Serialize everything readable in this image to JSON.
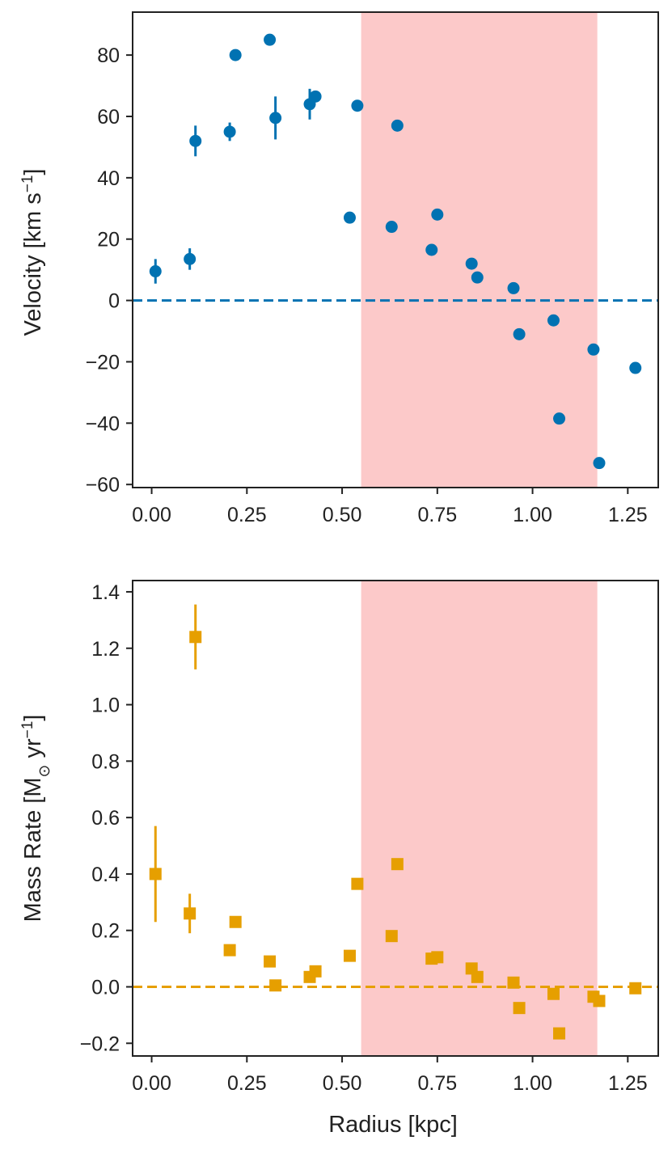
{
  "chart_data": [
    {
      "type": "scatter",
      "panel": "top",
      "ylabel": "Velocity [km s−1]",
      "ylabel_parts": {
        "main": "Velocity [km s",
        "sup": "−1",
        "close": "]"
      },
      "xlabel": "",
      "xlim": [
        -0.05,
        1.33
      ],
      "ylim": [
        -61,
        94
      ],
      "xticks": [
        0.0,
        0.25,
        0.5,
        0.75,
        1.0,
        1.25
      ],
      "xtick_labels": [
        "0.00",
        "0.25",
        "0.50",
        "0.75",
        "1.00",
        "1.25"
      ],
      "yticks": [
        -60,
        -40,
        -20,
        0,
        20,
        40,
        60,
        80
      ],
      "ytick_labels": [
        "−60",
        "−40",
        "−20",
        "0",
        "20",
        "40",
        "60",
        "80"
      ],
      "marker": "circle",
      "color": "#0072b2",
      "shaded_region": {
        "x_start": 0.55,
        "x_end": 1.17,
        "color": "#fcc9c9"
      },
      "reference_line": {
        "y": 0,
        "style": "dashed",
        "color": "#0072b2"
      },
      "series": [
        {
          "name": "Velocity",
          "points": [
            {
              "x": 0.01,
              "y": 9.5,
              "err": 4
            },
            {
              "x": 0.1,
              "y": 13.5,
              "err": 3.5
            },
            {
              "x": 0.115,
              "y": 52,
              "err": 5
            },
            {
              "x": 0.205,
              "y": 55,
              "err": 3
            },
            {
              "x": 0.22,
              "y": 80,
              "err": 0
            },
            {
              "x": 0.31,
              "y": 85,
              "err": 0
            },
            {
              "x": 0.325,
              "y": 59.5,
              "err": 7
            },
            {
              "x": 0.415,
              "y": 64,
              "err": 5
            },
            {
              "x": 0.43,
              "y": 66.5,
              "err": 0
            },
            {
              "x": 0.52,
              "y": 27,
              "err": 0
            },
            {
              "x": 0.54,
              "y": 63.5,
              "err": 0
            },
            {
              "x": 0.63,
              "y": 24,
              "err": 0
            },
            {
              "x": 0.645,
              "y": 57,
              "err": 0
            },
            {
              "x": 0.735,
              "y": 16.5,
              "err": 0
            },
            {
              "x": 0.75,
              "y": 28,
              "err": 0
            },
            {
              "x": 0.84,
              "y": 12,
              "err": 0
            },
            {
              "x": 0.855,
              "y": 7.5,
              "err": 0
            },
            {
              "x": 0.95,
              "y": 4,
              "err": 0
            },
            {
              "x": 0.965,
              "y": -11,
              "err": 0
            },
            {
              "x": 1.055,
              "y": -6.5,
              "err": 0
            },
            {
              "x": 1.07,
              "y": -38.5,
              "err": 0
            },
            {
              "x": 1.16,
              "y": -16,
              "err": 0
            },
            {
              "x": 1.175,
              "y": -53,
              "err": 0
            },
            {
              "x": 1.27,
              "y": -22,
              "err": 0
            }
          ]
        }
      ]
    },
    {
      "type": "scatter",
      "panel": "bottom",
      "ylabel": "Mass Rate [M⊙ yr−1]",
      "ylabel_parts": {
        "main": "Mass Rate [M",
        "sub": "⊙",
        "mid": " yr",
        "sup": "−1",
        "close": "]"
      },
      "xlabel": "Radius [kpc]",
      "xlim": [
        -0.05,
        1.33
      ],
      "ylim": [
        -0.245,
        1.44
      ],
      "xticks": [
        0.0,
        0.25,
        0.5,
        0.75,
        1.0,
        1.25
      ],
      "xtick_labels": [
        "0.00",
        "0.25",
        "0.50",
        "0.75",
        "1.00",
        "1.25"
      ],
      "yticks": [
        -0.2,
        0.0,
        0.2,
        0.4,
        0.6,
        0.8,
        1.0,
        1.2,
        1.4
      ],
      "ytick_labels": [
        "−0.2",
        "0.0",
        "0.2",
        "0.4",
        "0.6",
        "0.8",
        "1.0",
        "1.2",
        "1.4"
      ],
      "marker": "square",
      "color": "#e69f00",
      "shaded_region": {
        "x_start": 0.55,
        "x_end": 1.17,
        "color": "#fcc9c9"
      },
      "reference_line": {
        "y": 0,
        "style": "dashed",
        "color": "#e69f00"
      },
      "series": [
        {
          "name": "Mass Rate",
          "points": [
            {
              "x": 0.01,
              "y": 0.4,
              "err": 0.17
            },
            {
              "x": 0.1,
              "y": 0.26,
              "err": 0.07
            },
            {
              "x": 0.115,
              "y": 1.24,
              "err": 0.115
            },
            {
              "x": 0.205,
              "y": 0.13,
              "err": 0
            },
            {
              "x": 0.22,
              "y": 0.23,
              "err": 0
            },
            {
              "x": 0.31,
              "y": 0.09,
              "err": 0
            },
            {
              "x": 0.325,
              "y": 0.005,
              "err": 0
            },
            {
              "x": 0.415,
              "y": 0.035,
              "err": 0
            },
            {
              "x": 0.43,
              "y": 0.055,
              "err": 0
            },
            {
              "x": 0.52,
              "y": 0.11,
              "err": 0
            },
            {
              "x": 0.54,
              "y": 0.365,
              "err": 0
            },
            {
              "x": 0.63,
              "y": 0.18,
              "err": 0
            },
            {
              "x": 0.645,
              "y": 0.435,
              "err": 0
            },
            {
              "x": 0.735,
              "y": 0.1,
              "err": 0
            },
            {
              "x": 0.75,
              "y": 0.105,
              "err": 0
            },
            {
              "x": 0.84,
              "y": 0.065,
              "err": 0
            },
            {
              "x": 0.855,
              "y": 0.035,
              "err": 0
            },
            {
              "x": 0.95,
              "y": 0.015,
              "err": 0
            },
            {
              "x": 0.965,
              "y": -0.075,
              "err": 0
            },
            {
              "x": 1.055,
              "y": -0.025,
              "err": 0
            },
            {
              "x": 1.07,
              "y": -0.165,
              "err": 0
            },
            {
              "x": 1.16,
              "y": -0.035,
              "err": 0
            },
            {
              "x": 1.175,
              "y": -0.05,
              "err": 0
            },
            {
              "x": 1.27,
              "y": -0.005,
              "err": 0
            }
          ]
        }
      ]
    }
  ]
}
